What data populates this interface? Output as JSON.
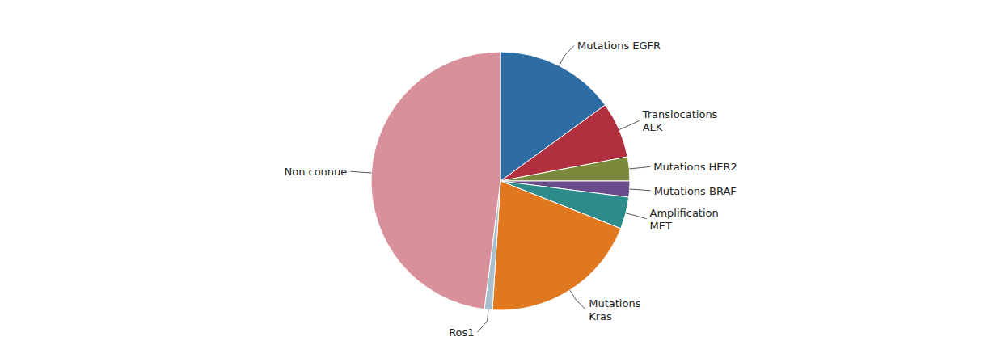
{
  "chart_data": {
    "type": "pie",
    "categories": [
      "Mutations EGFR",
      "Translocations\nALK",
      "Mutations HER2",
      "Mutations BRAF",
      "Amplification\nMET",
      "Mutations\nKras",
      "Ros1",
      "Non connue"
    ],
    "values": [
      15,
      7,
      3,
      2,
      4,
      20,
      1,
      48
    ],
    "colors": [
      "#2E6DA4",
      "#B03040",
      "#7A8A3A",
      "#6A4C8C",
      "#2E8B8B",
      "#E07820",
      "#A8BFD0",
      "#D8909A"
    ]
  }
}
